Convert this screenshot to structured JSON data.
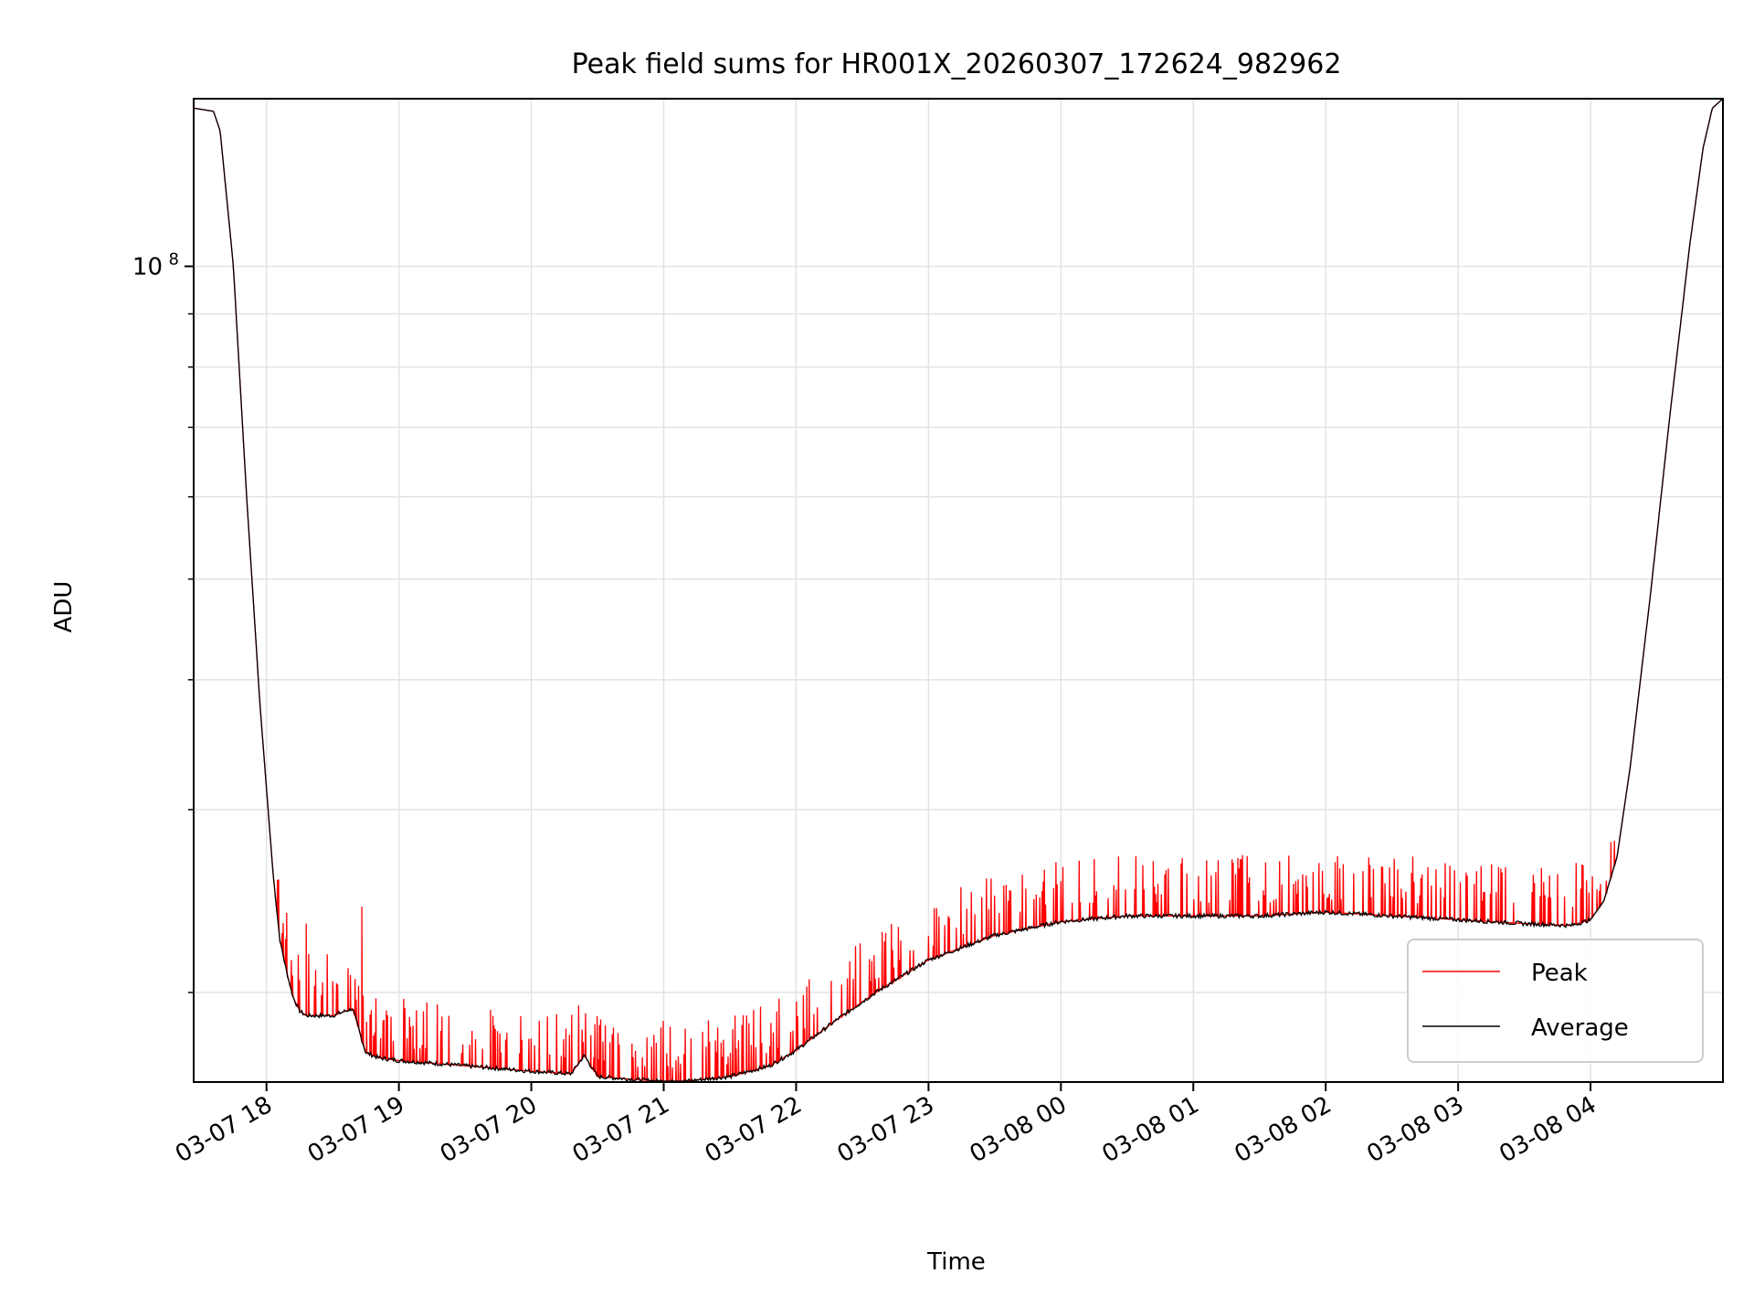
{
  "chart_data": {
    "type": "line",
    "title": "Peak field sums for HR001X_20260307_172624_982962",
    "xlabel": "Time",
    "ylabel": "ADU",
    "yscale": "log",
    "ylim": [
      16400000,
      145000000
    ],
    "xlim_hours": [
      17.45,
      29.0
    ],
    "x_ticks": [
      {
        "hour": 18,
        "label": "03-07 18"
      },
      {
        "hour": 19,
        "label": "03-07 19"
      },
      {
        "hour": 20,
        "label": "03-07 20"
      },
      {
        "hour": 21,
        "label": "03-07 21"
      },
      {
        "hour": 22,
        "label": "03-07 22"
      },
      {
        "hour": 23,
        "label": "03-07 23"
      },
      {
        "hour": 24,
        "label": "03-08 00"
      },
      {
        "hour": 25,
        "label": "03-08 01"
      },
      {
        "hour": 26,
        "label": "03-08 02"
      },
      {
        "hour": 27,
        "label": "03-08 03"
      },
      {
        "hour": 28,
        "label": "03-08 04"
      }
    ],
    "y_major_tick": {
      "value": 100000000,
      "base": "10",
      "exp": "8"
    },
    "y_minor_ticks": [
      20000000,
      30000000,
      40000000,
      50000000,
      60000000,
      70000000,
      80000000,
      90000000,
      200000000
    ],
    "grid": true,
    "legend": {
      "position": "lower-right",
      "entries": [
        "Peak",
        "Average"
      ]
    },
    "series": [
      {
        "name": "Average",
        "color": "#000000",
        "hours": [
          17.45,
          17.6,
          17.65,
          17.75,
          17.85,
          17.95,
          18.05,
          18.1,
          18.15,
          18.2,
          18.25,
          18.3,
          18.5,
          18.65,
          18.75,
          18.85,
          19.0,
          19.5,
          20.0,
          20.3,
          20.4,
          20.5,
          20.9,
          21.1,
          21.5,
          21.8,
          22.0,
          22.3,
          22.6,
          23.0,
          23.5,
          24.0,
          24.5,
          25.0,
          25.5,
          26.0,
          26.5,
          27.0,
          27.5,
          27.85,
          28.0,
          28.1,
          28.2,
          28.3,
          28.45,
          28.6,
          28.75,
          28.85,
          28.92,
          29.0
        ],
        "values": [
          142000000,
          141000000,
          135000000,
          100000000,
          60000000,
          38000000,
          26000000,
          22500000,
          21000000,
          19800000,
          19200000,
          19000000,
          19000000,
          19300000,
          17500000,
          17300000,
          17200000,
          17000000,
          16800000,
          16700000,
          17400000,
          16600000,
          16450000,
          16400000,
          16600000,
          17000000,
          17600000,
          18800000,
          20000000,
          21500000,
          22700000,
          23400000,
          23700000,
          23700000,
          23700000,
          23900000,
          23700000,
          23500000,
          23300000,
          23200000,
          23500000,
          24500000,
          27000000,
          33000000,
          48000000,
          72000000,
          105000000,
          130000000,
          142000000,
          145000000
        ]
      },
      {
        "name": "Peak",
        "color": "#ff0000",
        "spikes": [
          {
            "hour": 18.3,
            "value": 23300000
          },
          {
            "hour": 18.5,
            "value": 20500000
          },
          {
            "hour": 18.72,
            "value": 24200000
          },
          {
            "hour": 18.88,
            "value": 18800000
          },
          {
            "hour": 20.45,
            "value": 18200000
          },
          {
            "hour": 24.0,
            "value": 25600000
          },
          {
            "hour": 27.2,
            "value": 25000000
          },
          {
            "hour": 28.18,
            "value": 28000000
          }
        ],
        "spike_amplitude": 0.06,
        "spike_count": 440
      }
    ]
  }
}
